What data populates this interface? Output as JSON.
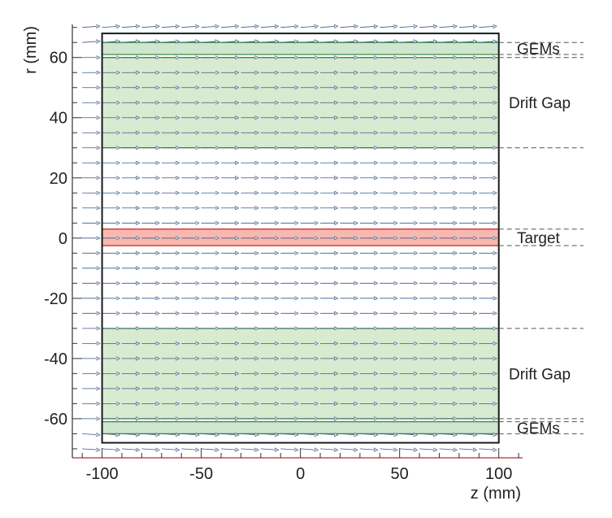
{
  "axes": {
    "x_label": "z (mm)",
    "y_label": "r (mm)",
    "x_ticks": [
      {
        "value": -100,
        "label": "-100"
      },
      {
        "value": -50,
        "label": "-50"
      },
      {
        "value": 0,
        "label": "0"
      },
      {
        "value": 50,
        "label": "50"
      },
      {
        "value": 100,
        "label": "100"
      }
    ],
    "y_ticks": [
      {
        "value": 60,
        "label": "60"
      },
      {
        "value": 40,
        "label": "40"
      },
      {
        "value": 20,
        "label": "20"
      },
      {
        "value": 0,
        "label": "0"
      },
      {
        "value": -20,
        "label": "-20"
      },
      {
        "value": -40,
        "label": "-40"
      },
      {
        "value": -60,
        "label": "-60"
      }
    ],
    "x_range": [
      -115,
      112
    ],
    "y_range": [
      -73,
      71
    ]
  },
  "regions": [
    {
      "label": "GEMs",
      "r_min": 61,
      "r_max": 65,
      "fill": "#cfe6cf",
      "line": "#3c8c3c"
    },
    {
      "label": "Drift Gap",
      "r_min": 30,
      "r_max": 60,
      "fill": "#d6ebd0",
      "line": "#3c8c3c"
    },
    {
      "label": "Target",
      "r_min": -2.5,
      "r_max": 3,
      "fill": "#f8b8b0",
      "line": "#d43030"
    },
    {
      "label": "Drift Gap",
      "r_min": -60,
      "r_max": -30,
      "fill": "#d6ebd0",
      "line": "#3c8c3c"
    },
    {
      "label": "GEMs",
      "r_min": -65,
      "r_max": -61,
      "fill": "#cfe6cf",
      "line": "#3c8c3c"
    }
  ],
  "outer_box": {
    "z_min": -100,
    "z_max": 100,
    "r_min": -68,
    "r_max": 68
  },
  "colors": {
    "arrow": "#3c5a82",
    "box": "#1a1a1a",
    "axis": "#333333",
    "red_axis": "#b03030"
  }
}
